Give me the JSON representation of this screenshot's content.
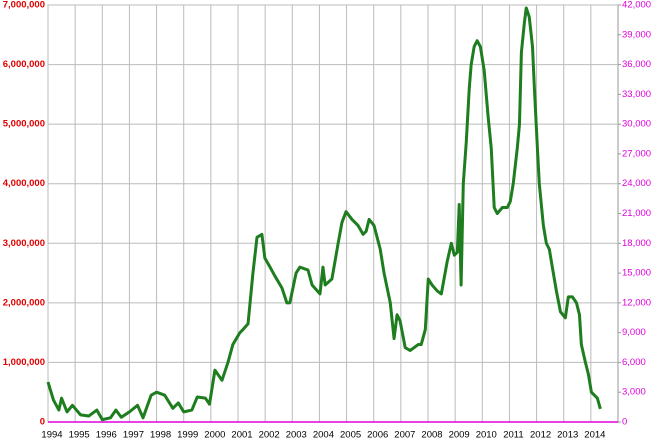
{
  "chart_data": {
    "type": "line",
    "xlim": [
      1994,
      2015
    ],
    "xticks": [
      1994,
      1995,
      1996,
      1997,
      1998,
      1999,
      2000,
      2001,
      2002,
      2003,
      2004,
      2005,
      2006,
      2007,
      2008,
      2009,
      2010,
      2011,
      2012,
      2013,
      2014
    ],
    "ylim": [
      0,
      7000000
    ],
    "yticks": [
      0,
      {
        "value": 1000000,
        "label": "1,000,000"
      },
      {
        "value": 2000000,
        "label": "2,000,000"
      },
      {
        "value": 3000000,
        "label": "3,000,000"
      },
      {
        "value": 4000000,
        "label": "4,000,000"
      },
      {
        "value": 5000000,
        "label": "5,000,000"
      },
      {
        "value": 6000000,
        "label": "6,000,000"
      },
      {
        "value": 7000000,
        "label": "7,000,000"
      }
    ],
    "y2lim": [
      0,
      42000
    ],
    "y2ticks": [
      0,
      {
        "value": 3000,
        "label": "3,000"
      },
      {
        "value": 6000,
        "label": "6,000"
      },
      {
        "value": 9000,
        "label": "9,000"
      },
      {
        "value": 12000,
        "label": "12,000"
      },
      {
        "value": 15000,
        "label": "15,000"
      },
      {
        "value": 18000,
        "label": "18,000"
      },
      {
        "value": 21000,
        "label": "21,000"
      },
      {
        "value": 24000,
        "label": "24,000"
      },
      {
        "value": 27000,
        "label": "27,000"
      },
      {
        "value": 30000,
        "label": "30,000"
      },
      {
        "value": 33000,
        "label": "33,000"
      },
      {
        "value": 36000,
        "label": "36,000"
      },
      {
        "value": 39000,
        "label": "39,000"
      },
      {
        "value": 42000,
        "label": "42,000"
      }
    ],
    "grid": true,
    "series": [
      {
        "color": "#1e7d1e",
        "x": [
          1994.0,
          1994.2,
          1994.4,
          1994.5,
          1994.7,
          1994.9,
          1995.2,
          1995.5,
          1995.8,
          1996.0,
          1996.3,
          1996.5,
          1996.7,
          1997.0,
          1997.3,
          1997.5,
          1997.8,
          1998.0,
          1998.3,
          1998.6,
          1998.8,
          1999.0,
          1999.3,
          1999.5,
          1999.8,
          1999.95,
          2000.15,
          2000.41,
          2000.63,
          2000.81,
          2001.07,
          2001.18,
          2001.37,
          2001.55,
          2001.7,
          2001.88,
          2001.99,
          2002.18,
          2002.36,
          2002.62,
          2002.8,
          2002.91,
          2003.14,
          2003.28,
          2003.58,
          2003.73,
          2004.02,
          2004.13,
          2004.21,
          2004.46,
          2004.69,
          2004.83,
          2004.98,
          2005.2,
          2005.42,
          2005.61,
          2005.72,
          2005.83,
          2006.01,
          2006.24,
          2006.38,
          2006.61,
          2006.75,
          2006.86,
          2006.97,
          2007.16,
          2007.34,
          2007.64,
          2007.75,
          2007.9,
          2008.01,
          2008.15,
          2008.34,
          2008.49,
          2008.71,
          2008.86,
          2008.97,
          2009.08,
          2009.15,
          2009.22,
          2009.3,
          2009.41,
          2009.52,
          2009.59,
          2009.7,
          2009.81,
          2009.93,
          2010.07,
          2010.22,
          2010.33,
          2010.44,
          2010.55,
          2010.74,
          2010.92,
          2011.03,
          2011.14,
          2011.29,
          2011.37,
          2011.44,
          2011.55,
          2011.62,
          2011.73,
          2011.85,
          2011.92,
          2012.03,
          2012.1,
          2012.25,
          2012.36,
          2012.47,
          2012.58,
          2012.73,
          2012.88,
          2013.06,
          2013.17,
          2013.32,
          2013.47,
          2013.58,
          2013.65,
          2013.8,
          2013.91,
          2014.02,
          2014.24,
          2014.35
        ],
        "values": [
          670000,
          370000,
          200000,
          400000,
          170000,
          280000,
          120000,
          100000,
          200000,
          40000,
          70000,
          200000,
          80000,
          170000,
          280000,
          70000,
          450000,
          500000,
          450000,
          230000,
          320000,
          170000,
          200000,
          420000,
          400000,
          300000,
          870000,
          700000,
          1000000,
          1300000,
          1500000,
          1550000,
          1650000,
          2500000,
          3100000,
          3150000,
          2750000,
          2600000,
          2450000,
          2250000,
          2000000,
          2000000,
          2500000,
          2600000,
          2550000,
          2300000,
          2150000,
          2600000,
          2300000,
          2400000,
          3000000,
          3350000,
          3530000,
          3400000,
          3300000,
          3150000,
          3200000,
          3400000,
          3300000,
          2900000,
          2500000,
          2000000,
          1400000,
          1800000,
          1700000,
          1250000,
          1200000,
          1300000,
          1300000,
          1550000,
          2400000,
          2300000,
          2200000,
          2150000,
          2700000,
          3000000,
          2800000,
          2850000,
          3650000,
          2300000,
          4000000,
          4700000,
          5600000,
          6000000,
          6300000,
          6400000,
          6300000,
          5900000,
          5100000,
          4600000,
          3600000,
          3500000,
          3600000,
          3600000,
          3700000,
          4000000,
          4600000,
          5000000,
          6200000,
          6700000,
          6950000,
          6800000,
          6300000,
          5600000,
          4600000,
          4000000,
          3300000,
          3000000,
          2900000,
          2600000,
          2200000,
          1850000,
          1750000,
          2100000,
          2100000,
          2000000,
          1800000,
          1300000,
          1000000,
          800000,
          500000,
          400000,
          220000
        ]
      }
    ]
  }
}
